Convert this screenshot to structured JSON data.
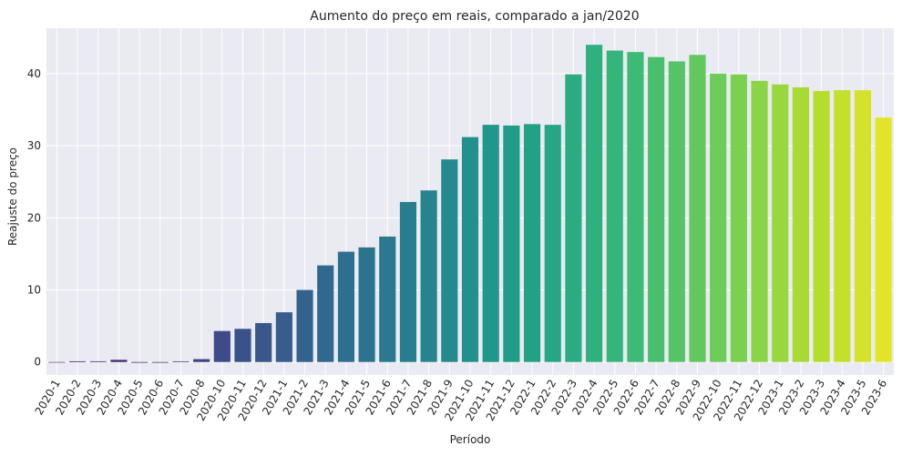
{
  "chart_data": {
    "type": "bar",
    "title": "Aumento do preço em reais, comparado a jan/2020",
    "xlabel": "Período",
    "ylabel": "Reajuste do preço",
    "ylim": [
      -1.8,
      46.3
    ],
    "yticks": [
      0,
      10,
      20,
      30,
      40
    ],
    "grid": true,
    "palette": "viridis",
    "categories": [
      "2020-1",
      "2020-2",
      "2020-3",
      "2020-4",
      "2020-5",
      "2020-6",
      "2020-7",
      "2020-8",
      "2020-10",
      "2020-11",
      "2020-12",
      "2021-1",
      "2021-2",
      "2021-3",
      "2021-4",
      "2021-5",
      "2021-6",
      "2021-7",
      "2021-8",
      "2021-9",
      "2021-10",
      "2021-11",
      "2021-12",
      "2022-1",
      "2022-2",
      "2022-3",
      "2022-4",
      "2022-5",
      "2022-6",
      "2022-7",
      "2022-8",
      "2022-9",
      "2022-10",
      "2022-11",
      "2022-12",
      "2023-1",
      "2023-2",
      "2023-3",
      "2023-4",
      "2023-5",
      "2023-6"
    ],
    "values": [
      0,
      0.1,
      0.1,
      0.3,
      -0.1,
      -0.1,
      0.1,
      0.4,
      4.3,
      4.6,
      5.4,
      6.9,
      10.0,
      13.4,
      15.3,
      15.9,
      17.4,
      22.2,
      23.8,
      28.1,
      31.2,
      32.9,
      32.8,
      33.0,
      32.9,
      39.9,
      44.0,
      43.2,
      43.0,
      42.3,
      41.7,
      42.6,
      40.0,
      39.9,
      39.0,
      38.5,
      38.1,
      37.6,
      37.7,
      37.7,
      33.9
    ]
  }
}
